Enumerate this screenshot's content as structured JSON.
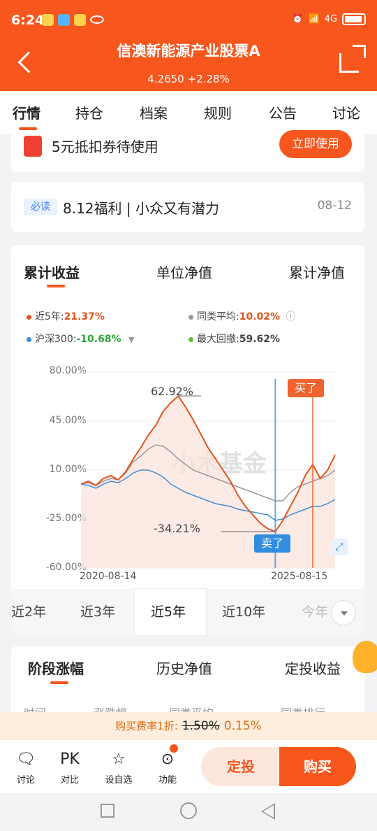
{
  "status": {
    "time": "6:24",
    "network": "4G"
  },
  "header": {
    "title": "信澳新能源产业股票A",
    "nav": "4.2650",
    "change": "+2.28%"
  },
  "tabs": [
    "行情",
    "持仓",
    "档案",
    "规则",
    "公告",
    "讨论"
  ],
  "coupon": {
    "text": "5元抵扣券待使用",
    "button": "立即使用"
  },
  "notice": {
    "tag": "必读",
    "text": "8.12福利 | 小众又有潜力",
    "date": "08-12"
  },
  "chart_tabs": [
    "累计收益",
    "单位净值",
    "累计净值"
  ],
  "legend": {
    "fund": {
      "label": "近5年:",
      "value": "21.37%",
      "color": "#e5531a"
    },
    "peer": {
      "label": "同类平均:",
      "value": "10.02%",
      "color": "#999999"
    },
    "index": {
      "label": "沪深300:",
      "value": "-10.68%",
      "color": "#3f8fd8"
    },
    "drawdown": {
      "label": "最大回撤:",
      "value": "59.62%",
      "color": "#57c23a"
    }
  },
  "chart_data": {
    "type": "line",
    "x_start": "2020-08-14",
    "x_end": "2025-08-15",
    "y_ticks": [
      "80.00%",
      "45.00%",
      "10.00%",
      "-25.00%",
      "-60.00%"
    ],
    "ylim": [
      -60,
      80
    ],
    "annotations": {
      "max": "62.92%",
      "min": "-34.21%",
      "sell": "卖了",
      "buy": "买了"
    },
    "series": [
      {
        "values": [
          0,
          2,
          -1,
          4,
          6,
          3,
          9,
          18,
          26,
          35,
          42,
          52,
          58,
          63,
          55,
          46,
          36,
          26,
          18,
          10,
          2,
          -8,
          -16,
          -22,
          -28,
          -32,
          -34,
          -26,
          -16,
          -6,
          6,
          14,
          4,
          10,
          21
        ]
      },
      {
        "values": [
          0,
          1,
          -1,
          2,
          4,
          3,
          8,
          16,
          20,
          25,
          28,
          27,
          23,
          18,
          14,
          10,
          8,
          6,
          4,
          2,
          0,
          -2,
          -4,
          -6,
          -8,
          -10,
          -12,
          -12,
          -6,
          -2,
          0,
          2,
          4,
          6,
          10
        ]
      },
      {
        "values": [
          0,
          -1,
          -3,
          0,
          2,
          1,
          4,
          8,
          10,
          10,
          8,
          5,
          0,
          -3,
          -6,
          -8,
          -10,
          -12,
          -14,
          -15,
          -16,
          -18,
          -19,
          -20,
          -21,
          -22,
          -26,
          -25,
          -22,
          -20,
          -18,
          -16,
          -16,
          -14,
          -11
        ]
      }
    ]
  },
  "periods": [
    "近2年",
    "近3年",
    "近5年",
    "近10年",
    "今年"
  ],
  "stage_tabs": [
    "阶段涨幅",
    "历史净值",
    "定投收益"
  ],
  "stage_cols": [
    "时间",
    "涨跌幅",
    "同类平均",
    "同类排行"
  ],
  "fee": {
    "prefix": "购买费率1折:",
    "old": "1.50%",
    "now": "0.15%"
  },
  "bottom": {
    "items": [
      "讨论",
      "对比",
      "设自选",
      "功能"
    ],
    "pk": "PK",
    "sip": "定投",
    "buy": "购买"
  },
  "watermark": "小木基金"
}
